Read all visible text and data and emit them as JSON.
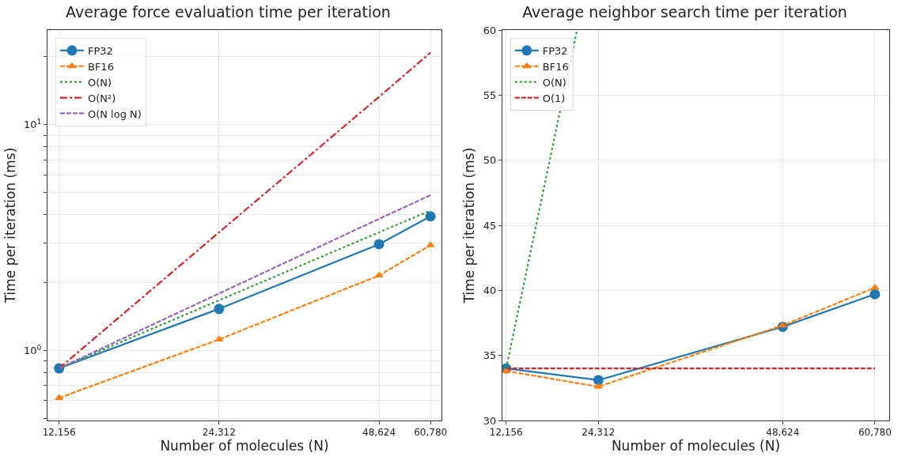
{
  "chart_data": [
    {
      "type": "line",
      "title": "Average force evaluation time per iteration",
      "xlabel": "Number of molecules (N)",
      "ylabel": "Time per iteration (ms)",
      "log": "xy",
      "grid": true,
      "legend": "top left",
      "x": [
        12156,
        24312,
        48624,
        60780
      ],
      "xlim": [
        11560,
        63730
      ],
      "xticks": [
        {
          "value": 12156,
          "label": "12,156"
        },
        {
          "value": 24312,
          "label": "24,312"
        },
        {
          "value": 48624,
          "label": "48,624"
        },
        {
          "value": 60780,
          "label": "60,780"
        }
      ],
      "ylim": [
        0.49,
        26.3
      ],
      "yticks": [
        {
          "value": 0.5,
          "label": null
        },
        {
          "value": 0.6,
          "label": null
        },
        {
          "value": 0.7,
          "label": null
        },
        {
          "value": 0.8,
          "label": null
        },
        {
          "value": 0.9,
          "label": null
        },
        {
          "value": 1,
          "label": "10$^{0}$"
        },
        {
          "value": 2,
          "label": null
        },
        {
          "value": 3,
          "label": null
        },
        {
          "value": 4,
          "label": null
        },
        {
          "value": 5,
          "label": null
        },
        {
          "value": 6,
          "label": null
        },
        {
          "value": 7,
          "label": null
        },
        {
          "value": 8,
          "label": null
        },
        {
          "value": 9,
          "label": null
        },
        {
          "value": 10,
          "label": "10$^{1}$"
        },
        {
          "value": 20,
          "label": null
        }
      ],
      "series": [
        {
          "name": "FP32",
          "color": "#1f77b4",
          "marker": "circle",
          "line_style": "solid",
          "values": [
            0.834,
            1.53,
            2.96,
            3.93
          ]
        },
        {
          "name": "BF16",
          "color": "#ff7f0e",
          "marker": "triangle",
          "line_style": "dashed",
          "values": [
            0.617,
            1.12,
            2.15,
            2.93
          ]
        },
        {
          "name": "O(N)",
          "color": "#2ca02c",
          "marker": "none",
          "line_style": "dotted",
          "values": [
            0.834,
            1.67,
            3.34,
            4.17
          ]
        },
        {
          "name": "O(N²)",
          "color": "#d62728",
          "marker": "none",
          "line_style": "dashdot",
          "values": [
            0.834,
            3.34,
            13.3,
            20.9
          ]
        },
        {
          "name": "O(N log N)",
          "color": "#9467bd",
          "marker": "none",
          "line_style": "dashed",
          "values": [
            0.834,
            1.79,
            3.83,
            4.88
          ]
        }
      ]
    },
    {
      "type": "line",
      "title": "Average neighbor search time per iteration",
      "xlabel": "Number of molecules (N)",
      "ylabel": "Time per iteration (ms)",
      "grid": true,
      "legend": "top left",
      "x": [
        12156,
        24312,
        48624,
        60780
      ],
      "xlim": [
        11660,
        62670
      ],
      "xticks": [
        {
          "value": 12156,
          "label": "12,156"
        },
        {
          "value": 24312,
          "label": "24,312"
        },
        {
          "value": 48624,
          "label": "48,624"
        },
        {
          "value": 60780,
          "label": "60,780"
        }
      ],
      "ylim": [
        30,
        60
      ],
      "yticks": [
        30,
        35,
        40,
        45,
        50,
        55,
        60
      ],
      "series": [
        {
          "name": "FP32",
          "color": "#1f77b4",
          "marker": "circle",
          "line_style": "solid",
          "values": [
            34.0,
            33.1,
            37.2,
            39.7
          ]
        },
        {
          "name": "BF16",
          "color": "#ff7f0e",
          "marker": "triangle",
          "line_style": "dashed",
          "values": [
            33.8,
            32.6,
            37.3,
            40.2
          ]
        },
        {
          "name": "O(N)",
          "color": "#2ca02c",
          "marker": "none",
          "line_style": "dotted",
          "x": [
            12156,
            21500
          ],
          "values": [
            34.0,
            60
          ]
        },
        {
          "name": "O(1)",
          "color": "#d62728",
          "marker": "none",
          "line_style": "dashed",
          "values": [
            34.0,
            34.0,
            34.0,
            34.0
          ]
        }
      ]
    }
  ]
}
